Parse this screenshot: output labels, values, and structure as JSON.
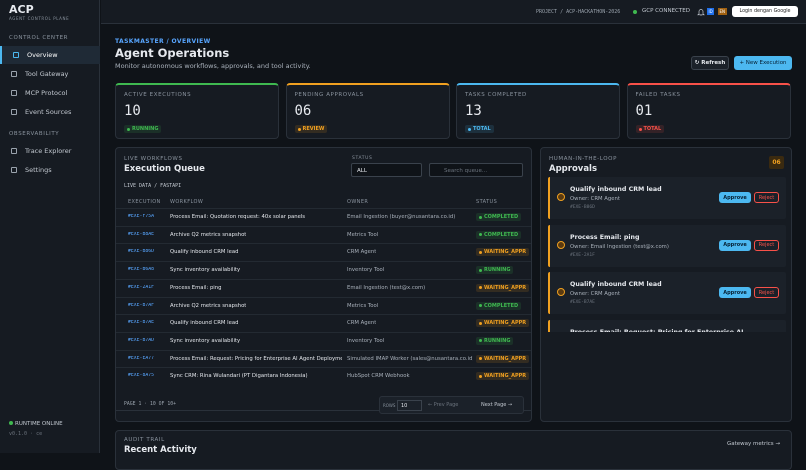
{
  "brand": {
    "name": "ACP",
    "tagline": "AGENT CONTROL PLANE"
  },
  "topbar": {
    "project": "PROJECT / ACP-HACKATHON-2026",
    "status": "GCP CONNECTED",
    "badges": [
      "ID",
      "EN"
    ],
    "login": "Login dengan Google"
  },
  "sidebar": {
    "sections": [
      {
        "title": "CONTROL CENTER",
        "items": [
          "Overview",
          "Tool Gateway",
          "MCP Protocol",
          "Event Sources"
        ]
      },
      {
        "title": "OBSERVABILITY",
        "items": [
          "Trace Explorer",
          "Settings"
        ]
      }
    ],
    "runtime": "RUNTIME ONLINE",
    "version": "v0.1.0 · ce"
  },
  "header": {
    "breadcrumb": "TASKMASTER / OVERVIEW",
    "title": "Agent Operations",
    "subtitle": "Monitor autonomous workflows, approvals, and tool activity.",
    "buttons": [
      "↻ Refresh",
      "+ New Execution"
    ]
  },
  "stats": [
    {
      "label": "ACTIVE EXECUTIONS",
      "value": "10",
      "tag": "RUNNING"
    },
    {
      "label": "PENDING APPROVALS",
      "value": "06",
      "tag": "REVIEW"
    },
    {
      "label": "TASKS COMPLETED",
      "value": "13",
      "tag": "TOTAL"
    },
    {
      "label": "FAILED TASKS",
      "value": "01",
      "tag": "TOTAL"
    }
  ],
  "queue": {
    "eyebrow": "LIVE WORKFLOWS",
    "title": "Execution Queue",
    "status_label": "STATUS",
    "status_value": "ALL",
    "search_placeholder": "Search queue...",
    "source": "LIVE DATA / FASTAPI",
    "columns": [
      "EXECUTION",
      "WORKFLOW",
      "OWNER",
      "STATUS"
    ],
    "rows": [
      [
        "#EXE-F75A",
        "Process Email: Quotation request: 40x solar panels",
        "Email Ingestion (buyer@nusantara.co.id)",
        "COMPLETED"
      ],
      [
        "#EXE-B8AE",
        "Archive Q2 metrics snapshot",
        "Metrics Tool",
        "COMPLETED"
      ],
      [
        "#EXE-B86D",
        "Qualify inbound CRM lead",
        "CRM Agent",
        "WAITING_APPR"
      ],
      [
        "#EXE-B6A8",
        "Sync inventory availability",
        "Inventory Tool",
        "RUNNING"
      ],
      [
        "#EXE-2A1F",
        "Process Email: ping",
        "Email Ingestion (test@x.com)",
        "WAITING_APPR"
      ],
      [
        "#EXE-B7AF",
        "Archive Q2 metrics snapshot",
        "Metrics Tool",
        "COMPLETED"
      ],
      [
        "#EXE-B7AE",
        "Qualify inbound CRM lead",
        "CRM Agent",
        "WAITING_APPR"
      ],
      [
        "#EXE-B7AD",
        "Sync inventory availability",
        "Inventory Tool",
        "RUNNING"
      ],
      [
        "#EXE-EA77",
        "Process Email: Request: Pricing for Enterprise AI Agent Deployments",
        "Simulated IMAP Worker (sales@nusantara.co.id)",
        "WAITING_APPR"
      ],
      [
        "#EXE-8A75",
        "Sync CRM: Rina Wulandari (PT Digantara Indonesia)",
        "HubSpot CRM Webhook",
        "WAITING_APPR"
      ]
    ],
    "page_info": "PAGE 1 · 10 OF 10+",
    "rows_label": "ROWS",
    "rows_value": "10",
    "prev": "← Prev Page",
    "next": "Next Page →"
  },
  "approvals": {
    "eyebrow": "HUMAN-IN-THE-LOOP",
    "title": "Approvals",
    "count": "06",
    "items": [
      {
        "title": "Qualify inbound CRM lead",
        "owner": "Owner: CRM Agent",
        "id": "#EXE-B86D"
      },
      {
        "title": "Process Email: ping",
        "owner": "Owner: Email Ingestion (test@x.com)",
        "id": "#EXE-2A1F"
      },
      {
        "title": "Qualify inbound CRM lead",
        "owner": "Owner: CRM Agent",
        "id": "#EXE-B7AE"
      },
      {
        "title": "Process Email: Request: Pricing for Enterprise AI"
      }
    ],
    "approve": "Approve",
    "reject": "Reject"
  },
  "audit": {
    "eyebrow": "AUDIT TRAIL",
    "title": "Recent Activity",
    "link": "Gateway metrics →"
  }
}
